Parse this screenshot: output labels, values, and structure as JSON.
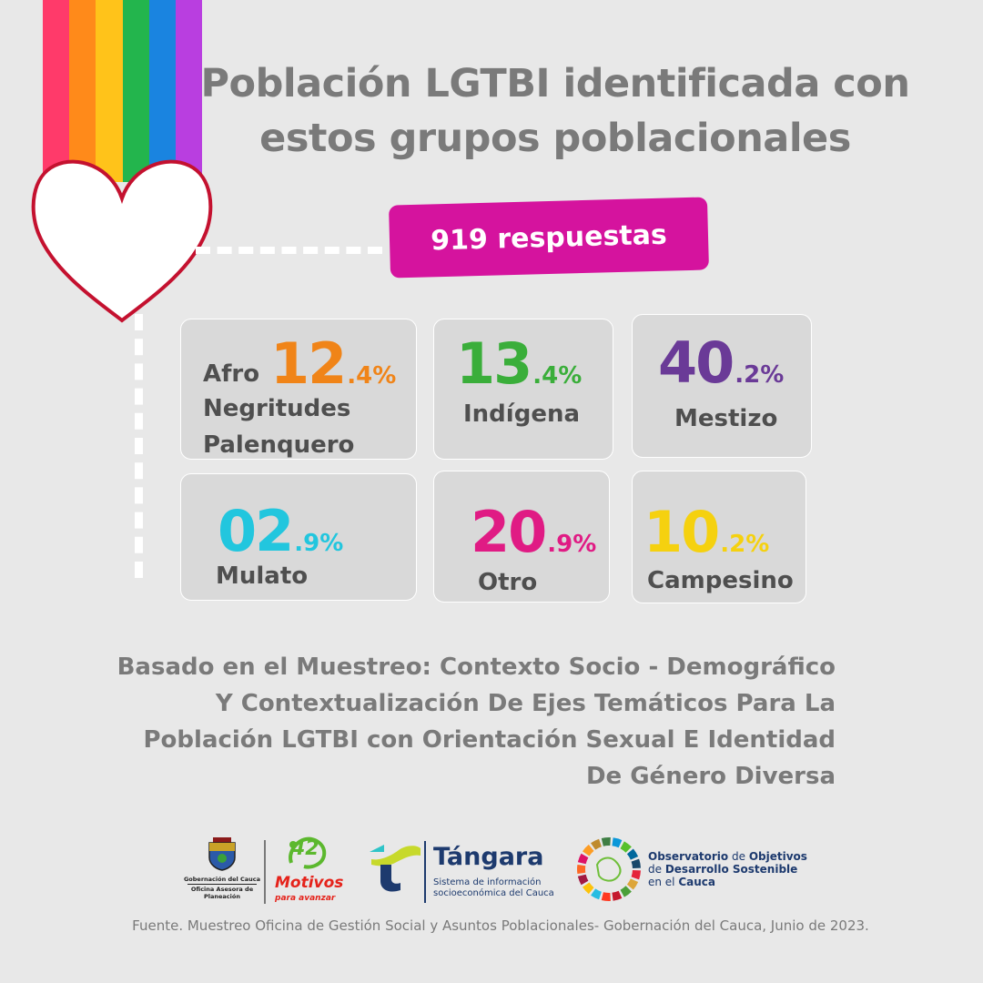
{
  "title": {
    "line1": "Población LGTBI identificada con",
    "line2": "estos grupos poblacionales"
  },
  "respuestas": "919 respuestas",
  "chart_data": {
    "type": "table",
    "title": "Población LGTBI identificada con estos grupos poblacionales",
    "total_responses": 919,
    "categories": [
      "Afro Negritudes Palenquero",
      "Indígena",
      "Mestizo",
      "Mulato",
      "Otro",
      "Campesino"
    ],
    "values": [
      12.4,
      13.4,
      40.2,
      2.9,
      20.9,
      10.2
    ],
    "unit": "%"
  },
  "cards": [
    {
      "big": "12",
      "small": ".4%",
      "color": "#f08418",
      "label_prefix": "Afro",
      "label_lines": [
        "Negritudes",
        "Palenquero"
      ]
    },
    {
      "big": "13",
      "small": ".4%",
      "color": "#3aae3a",
      "label": "Indígena"
    },
    {
      "big": "40",
      "small": ".2%",
      "color": "#6a3a97",
      "label": "Mestizo"
    },
    {
      "big": "02",
      "small": ".9%",
      "color": "#22c6de",
      "label": "Mulato"
    },
    {
      "big": "20",
      "small": ".9%",
      "color": "#e01b84",
      "label": "Otro"
    },
    {
      "big": "10",
      "small": ".2%",
      "color": "#f5d10f",
      "label": "Campesino"
    }
  ],
  "basado": {
    "line1": "Basado en el Muestreo: Contexto Socio - Demográfico",
    "line2": "Y Contextualización De Ejes Temáticos Para La",
    "line3": "Población LGTBI con Orientación Sexual E Identidad",
    "line4": "De Género Diversa"
  },
  "logos": {
    "gobernacion": {
      "line1": "Gobernación del Cauca",
      "line2": "Oficina Asesora de",
      "line3": "Planeación"
    },
    "motivos": {
      "number": "42",
      "word": "Motivos",
      "tagline": "para avanzar"
    },
    "tangara": {
      "name": "Tángara",
      "sub1": "Sistema de información",
      "sub2": "socioeconómica del Cauca"
    },
    "observatorio": {
      "line1a": "Observatorio",
      "line1b": " de ",
      "line1c": "Objetivos",
      "line2a": "de ",
      "line2b": "Desarrollo Sostenible",
      "line3a": "en el ",
      "line3b": "Cauca"
    }
  },
  "fuente": "Fuente. Muestreo Oficina de Gestión Social y Asuntos Poblacionales- Gobernación del Cauca, Junio de 2023.",
  "colors": {
    "rainbow": [
      "#ff3a6a",
      "#ff8a1a",
      "#ffc31a",
      "#23b54d",
      "#1a84e0",
      "#b93ee0"
    ],
    "heart_border": "#c4112f",
    "pill": "#d5139e",
    "text_gray": "#7a7a7a"
  },
  "icons": [
    "heart-icon",
    "coat-of-arms-icon",
    "motivos-logo-icon",
    "tangara-logo-icon",
    "sdg-wheel-icon"
  ]
}
